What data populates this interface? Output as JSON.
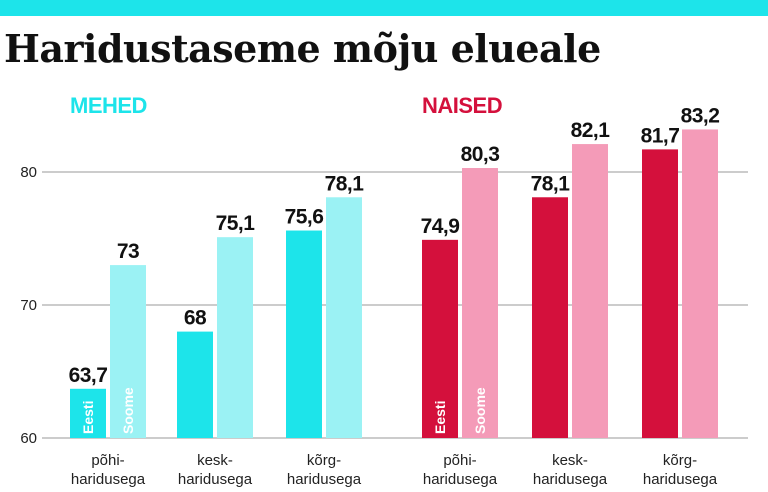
{
  "title": "Haridustaseme mõju elueale",
  "colors": {
    "topbar": "#1de4ea",
    "mehed_eesti": "#1de4ea",
    "mehed_soome": "#9bf2f4",
    "naised_eesti": "#d4103c",
    "naised_soome": "#f49bb8",
    "mehed_label": "#1de4ea",
    "naised_label": "#d4103c"
  },
  "chart_data": {
    "type": "bar",
    "groups": [
      {
        "name": "MEHED",
        "categories": [
          [
            "põhi-",
            "haridusega"
          ],
          [
            "kesk-",
            "haridusega"
          ],
          [
            "kõrg-",
            "haridusega"
          ]
        ],
        "series": [
          {
            "name": "Eesti",
            "values": [
              63.7,
              68,
              75.6
            ],
            "labels": [
              "63,7",
              "68",
              "75,6"
            ]
          },
          {
            "name": "Soome",
            "values": [
              73,
              75.1,
              78.1
            ],
            "labels": [
              "73",
              "75,1",
              "78,1"
            ]
          }
        ]
      },
      {
        "name": "NAISED",
        "categories": [
          [
            "põhi-",
            "haridusega"
          ],
          [
            "kesk-",
            "haridusega"
          ],
          [
            "kõrg-",
            "haridusega"
          ]
        ],
        "series": [
          {
            "name": "Eesti",
            "values": [
              74.9,
              78.1,
              81.7
            ],
            "labels": [
              "74,9",
              "78,1",
              "81,7"
            ]
          },
          {
            "name": "Soome",
            "values": [
              80.3,
              82.1,
              83.2
            ],
            "labels": [
              "80,3",
              "82,1",
              "83,2"
            ]
          }
        ]
      }
    ],
    "yticks": [
      "60",
      "70",
      "80"
    ],
    "ylim": [
      60,
      85
    ],
    "grid": true
  }
}
